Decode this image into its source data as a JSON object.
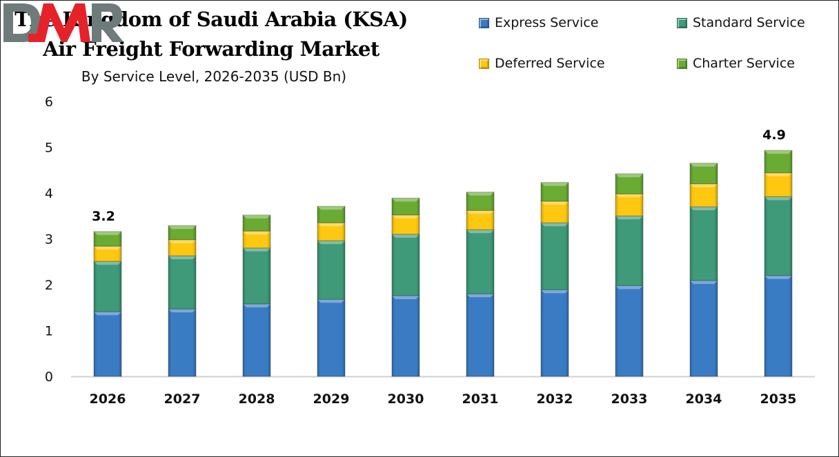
{
  "chart_data": {
    "type": "bar",
    "stacked": true,
    "title": "The Kingdom of Saudi Arabia (KSA)",
    "title_line2": "Air Freight Forwarding Market",
    "subtitle": "By Service Level, 2026-2035 (USD Bn)",
    "categories": [
      "2026",
      "2027",
      "2028",
      "2029",
      "2030",
      "2031",
      "2032",
      "2033",
      "2034",
      "2035"
    ],
    "series": [
      {
        "name": "Express Service",
        "color": "#3a7cc4",
        "values": [
          1.41,
          1.47,
          1.58,
          1.68,
          1.76,
          1.8,
          1.89,
          1.98,
          2.09,
          2.2
        ]
      },
      {
        "name": "Standard Service",
        "color": "#3e9a78",
        "values": [
          1.1,
          1.16,
          1.22,
          1.28,
          1.34,
          1.4,
          1.46,
          1.52,
          1.61,
          1.72
        ]
      },
      {
        "name": "Deferred Service",
        "color": "#fdc80f",
        "values": [
          0.33,
          0.35,
          0.37,
          0.39,
          0.42,
          0.42,
          0.47,
          0.48,
          0.5,
          0.52
        ]
      },
      {
        "name": "Charter Service",
        "color": "#6aab34",
        "values": [
          0.32,
          0.31,
          0.35,
          0.36,
          0.37,
          0.4,
          0.41,
          0.44,
          0.45,
          0.49
        ]
      }
    ],
    "data_labels": {
      "2026": "3.2",
      "2035": "4.9"
    },
    "ylim": [
      0,
      6
    ],
    "yticks": [
      "0",
      "1",
      "2",
      "3",
      "4",
      "5",
      "6"
    ],
    "grid": false,
    "legend_position": "top-right"
  },
  "logo": {
    "text": "DMR"
  }
}
